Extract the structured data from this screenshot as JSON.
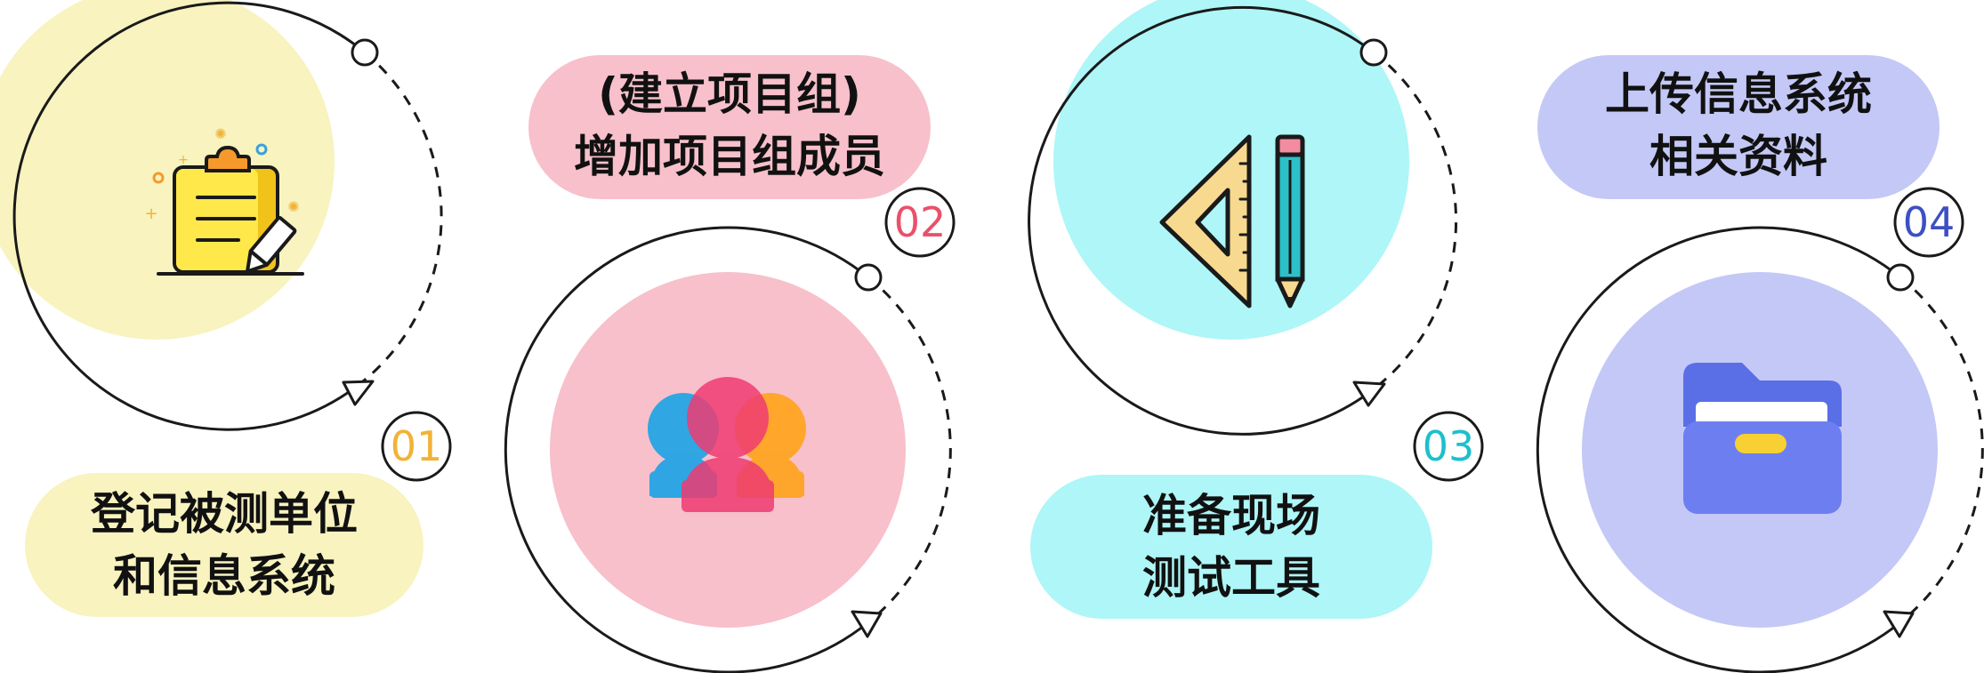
{
  "colors": {
    "step1": "#f8f3bf",
    "step2": "#f7c0cb",
    "step3": "#aef6f7",
    "step4": "#c4c8f7",
    "badge1": "#f2b236",
    "badge2": "#e9516a",
    "badge3": "#1cc0cc",
    "badge4": "#3d4fc4"
  },
  "steps": [
    {
      "number": "01",
      "label_line1": "登记被测单位",
      "label_line2": "和信息系统",
      "icon": "clipboard-pencil-icon"
    },
    {
      "number": "02",
      "label_line1": "(建立项目组)",
      "label_line2": "增加项目组成员",
      "icon": "team-members-icon"
    },
    {
      "number": "03",
      "label_line1": "准备现场",
      "label_line2": "测试工具",
      "icon": "ruler-pencil-icon"
    },
    {
      "number": "04",
      "label_line1": "上传信息系统",
      "label_line2": "相关资料",
      "icon": "folder-icon"
    }
  ]
}
